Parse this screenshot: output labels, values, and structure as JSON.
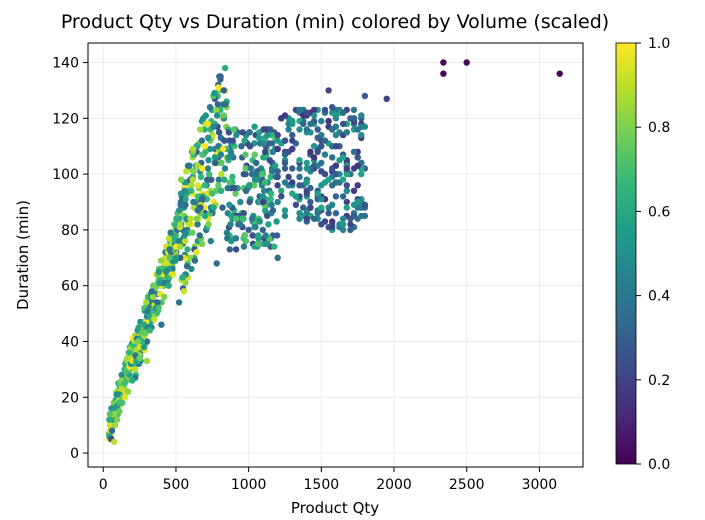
{
  "chart_data": {
    "type": "scatter",
    "title": "Product Qty vs Duration (min) colored by Volume (scaled)",
    "xlabel": "Product Qty",
    "ylabel": "Duration (min)",
    "xlim": [
      -105,
      3300
    ],
    "ylim": [
      -5,
      147
    ],
    "xticks": [
      0,
      500,
      1000,
      1500,
      2000,
      2500,
      3000
    ],
    "yticks": [
      0,
      20,
      40,
      60,
      80,
      100,
      120,
      140
    ],
    "grid": true,
    "colormap": "viridis",
    "colorbar": {
      "label": "",
      "range": [
        0.0,
        1.0
      ],
      "ticks": [
        "0.0",
        "0.2",
        "0.4",
        "0.6",
        "0.8",
        "1.0"
      ]
    },
    "colors": {
      "viridis": [
        "#440154",
        "#482878",
        "#3e4989",
        "#31688e",
        "#26828e",
        "#1f9e89",
        "#35b779",
        "#6ece58",
        "#b5de2b",
        "#fde725"
      ]
    },
    "series": [
      {
        "x_cols": [
          null,
          0,
          0,
          0
        ],
        "cloud_sample_points": [
          {
            "x": 55,
            "y": 5,
            "c": 0.25
          },
          {
            "x": 60,
            "y": 8,
            "c": 0.35
          },
          {
            "x": 75,
            "y": 4,
            "c": 0.9
          },
          {
            "x": 80,
            "y": 10,
            "c": 0.85
          },
          {
            "x": 95,
            "y": 12,
            "c": 0.8
          },
          {
            "x": 110,
            "y": 15,
            "c": 0.75
          },
          {
            "x": 130,
            "y": 18,
            "c": 0.7
          },
          {
            "x": 150,
            "y": 20,
            "c": 0.95
          },
          {
            "x": 170,
            "y": 22,
            "c": 0.82
          },
          {
            "x": 200,
            "y": 26,
            "c": 0.6
          },
          {
            "x": 220,
            "y": 30,
            "c": 0.9
          },
          {
            "x": 250,
            "y": 34,
            "c": 0.78
          },
          {
            "x": 280,
            "y": 38,
            "c": 0.55
          },
          {
            "x": 300,
            "y": 33,
            "c": 0.85
          },
          {
            "x": 320,
            "y": 44,
            "c": 0.65
          },
          {
            "x": 350,
            "y": 48,
            "c": 0.9
          },
          {
            "x": 380,
            "y": 52,
            "c": 0.7
          },
          {
            "x": 400,
            "y": 46,
            "c": 0.4
          },
          {
            "x": 420,
            "y": 56,
            "c": 0.8
          },
          {
            "x": 450,
            "y": 60,
            "c": 0.6
          },
          {
            "x": 480,
            "y": 64,
            "c": 0.95
          },
          {
            "x": 500,
            "y": 70,
            "c": 0.55
          },
          {
            "x": 530,
            "y": 74,
            "c": 0.85
          },
          {
            "x": 560,
            "y": 78,
            "c": 0.5
          },
          {
            "x": 600,
            "y": 84,
            "c": 0.9
          },
          {
            "x": 620,
            "y": 90,
            "c": 0.4
          },
          {
            "x": 650,
            "y": 96,
            "c": 0.95
          },
          {
            "x": 680,
            "y": 102,
            "c": 0.98
          },
          {
            "x": 700,
            "y": 110,
            "c": 1.0
          },
          {
            "x": 720,
            "y": 118,
            "c": 0.97
          },
          {
            "x": 740,
            "y": 76,
            "c": 0.45
          },
          {
            "x": 780,
            "y": 68,
            "c": 0.35
          },
          {
            "x": 820,
            "y": 88,
            "c": 0.3
          },
          {
            "x": 860,
            "y": 106,
            "c": 0.5
          },
          {
            "x": 900,
            "y": 95,
            "c": 0.25
          },
          {
            "x": 950,
            "y": 110,
            "c": 0.35
          },
          {
            "x": 1000,
            "y": 80,
            "c": 0.3
          },
          {
            "x": 1050,
            "y": 100,
            "c": 0.4
          },
          {
            "x": 1100,
            "y": 90,
            "c": 0.2
          },
          {
            "x": 1150,
            "y": 116,
            "c": 0.3
          },
          {
            "x": 1200,
            "y": 70,
            "c": 0.35
          },
          {
            "x": 1250,
            "y": 104,
            "c": 0.28
          },
          {
            "x": 1300,
            "y": 112,
            "c": 0.22
          },
          {
            "x": 1350,
            "y": 96,
            "c": 0.3
          },
          {
            "x": 1400,
            "y": 122,
            "c": 0.25
          },
          {
            "x": 1450,
            "y": 84,
            "c": 0.32
          },
          {
            "x": 1500,
            "y": 110,
            "c": 0.27
          },
          {
            "x": 1550,
            "y": 130,
            "c": 0.2
          },
          {
            "x": 1600,
            "y": 100,
            "c": 0.3
          },
          {
            "x": 1650,
            "y": 118,
            "c": 0.25
          },
          {
            "x": 1700,
            "y": 80,
            "c": 0.3
          },
          {
            "x": 1750,
            "y": 106,
            "c": 0.28
          },
          {
            "x": 1800,
            "y": 128,
            "c": 0.3
          },
          {
            "x": 1950,
            "y": 127,
            "c": 0.2
          },
          {
            "x": 2340,
            "y": 140,
            "c": 0.02
          },
          {
            "x": 2340,
            "y": 136,
            "c": 0.02
          },
          {
            "x": 2500,
            "y": 140,
            "c": 0.02
          },
          {
            "x": 3140,
            "y": 136,
            "c": 0.02
          }
        ]
      }
    ],
    "series_description": "dense point cloud; values sampled from the plot",
    "outliers": [
      {
        "x": 2340,
        "y": 140,
        "c": 0.02
      },
      {
        "x": 2340,
        "y": 136,
        "c": 0.02
      },
      {
        "x": 2500,
        "y": 140,
        "c": 0.02
      },
      {
        "x": 3140,
        "y": 136,
        "c": 0.02
      }
    ],
    "scatter_pattern": {
      "bins": [
        {
          "x_range": [
            40,
            220
          ],
          "y_center_slope": 0.17,
          "y_spread": 5,
          "c_range": [
            0.45,
            1.0
          ],
          "count": 160
        },
        {
          "x_range": [
            220,
            520
          ],
          "y_center_slope": 0.15,
          "y_spread": 8,
          "c_range": [
            0.35,
            1.0
          ],
          "count": 200
        },
        {
          "x_range": [
            520,
            850
          ],
          "y_center_slope": 0.14,
          "y_spread": 22,
          "c_range": [
            0.25,
            1.0
          ],
          "count": 230
        },
        {
          "x_range": [
            850,
            1200
          ],
          "y_center_slope": 0.0,
          "y_center": 95,
          "y_spread": 22,
          "c_range": [
            0.2,
            0.75
          ],
          "count": 190
        },
        {
          "x_range": [
            1200,
            1800
          ],
          "y_center_slope": 0.0,
          "y_center": 102,
          "y_spread": 22,
          "c_range": [
            0.15,
            0.6
          ],
          "count": 260
        }
      ]
    }
  }
}
